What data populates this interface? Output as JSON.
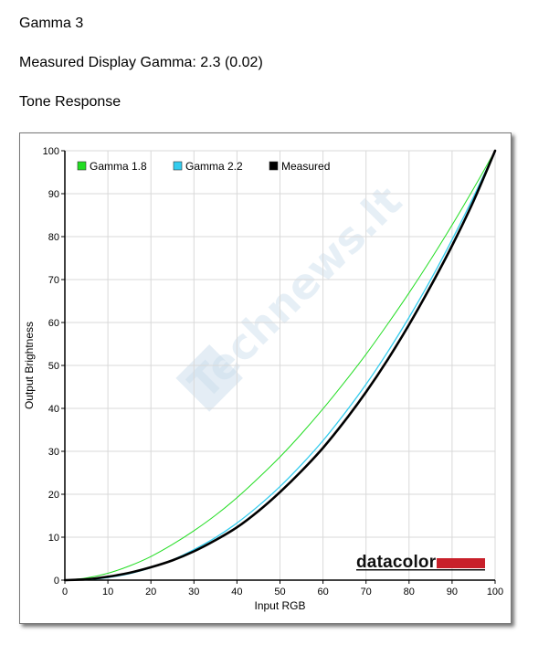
{
  "page": {
    "title": "Gamma 3",
    "measured_gamma_text": "Measured Display Gamma: 2.3 (0.02)",
    "section_title": "Tone Response"
  },
  "watermark": {
    "text": "Technews.lt"
  },
  "logo": {
    "text": "datacolor",
    "bar_color": "#c8202a"
  },
  "chart_data": {
    "type": "line",
    "title": "",
    "xlabel": "Input RGB",
    "ylabel": "Output Brightness",
    "xlim": [
      0,
      100
    ],
    "ylim": [
      0,
      100
    ],
    "xticks": [
      0,
      10,
      20,
      30,
      40,
      50,
      60,
      70,
      80,
      90,
      100
    ],
    "yticks": [
      0,
      10,
      20,
      30,
      40,
      50,
      60,
      70,
      80,
      90,
      100
    ],
    "grid": true,
    "legend_position": "top-left",
    "series": [
      {
        "name": "Gamma 1.8",
        "color": "#22dd22",
        "x": [
          0,
          5,
          10,
          15,
          20,
          25,
          30,
          35,
          40,
          45,
          50,
          55,
          60,
          65,
          70,
          75,
          80,
          85,
          90,
          95,
          100
        ],
        "y": [
          0,
          0.5,
          1.6,
          3.3,
          5.5,
          8.3,
          11.5,
          15.1,
          19.2,
          23.8,
          28.7,
          34.1,
          39.9,
          46.1,
          52.6,
          59.6,
          66.9,
          74.6,
          82.7,
          91.2,
          100
        ]
      },
      {
        "name": "Gamma 2.2",
        "color": "#33ccee",
        "x": [
          0,
          5,
          10,
          15,
          20,
          25,
          30,
          35,
          40,
          45,
          50,
          55,
          60,
          65,
          70,
          75,
          80,
          85,
          90,
          95,
          100
        ],
        "y": [
          0,
          0.1,
          0.6,
          1.5,
          2.9,
          4.7,
          7.1,
          9.9,
          13.3,
          17.3,
          21.8,
          26.9,
          32.5,
          38.8,
          45.6,
          53.1,
          61.2,
          69.9,
          79.3,
          89.3,
          100
        ]
      },
      {
        "name": "Measured",
        "color": "#000000",
        "x": [
          0,
          5,
          10,
          15,
          20,
          25,
          30,
          35,
          40,
          45,
          50,
          55,
          60,
          65,
          70,
          75,
          80,
          85,
          90,
          95,
          100
        ],
        "y": [
          0,
          0.2,
          0.8,
          1.7,
          3.0,
          4.6,
          6.7,
          9.3,
          12.3,
          16.1,
          20.5,
          25.4,
          30.8,
          37.0,
          43.8,
          51.3,
          59.5,
          68.4,
          77.9,
          88.3,
          100
        ]
      }
    ]
  }
}
